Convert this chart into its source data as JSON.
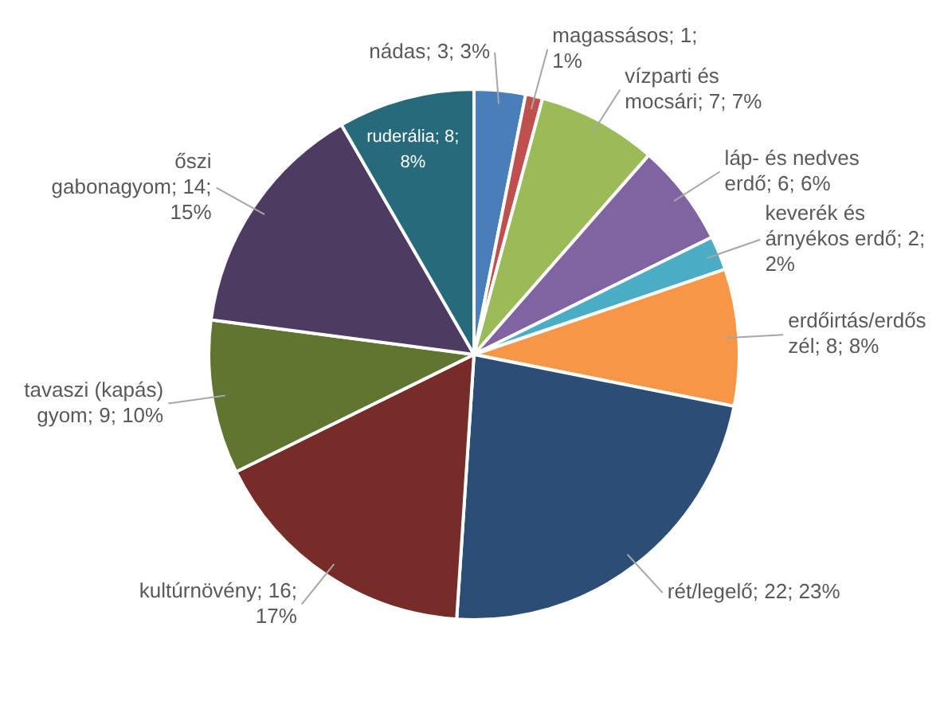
{
  "chart_data": {
    "type": "pie",
    "categories": [
      "nádas",
      "magassásos",
      "vízparti és mocsári",
      "láp- és nedves erdő",
      "keverék és árnyékos erdő",
      "erdőirtás/erdős zél",
      "rét/legelő",
      "kultúrnövény",
      "tavaszi (kapás) gyom",
      "őszi gabonagyom",
      "ruderália"
    ],
    "values": [
      3,
      1,
      7,
      6,
      2,
      8,
      22,
      16,
      9,
      14,
      8
    ],
    "value_labels": [
      "3; 3%",
      "1; 1%",
      "7; 7%",
      "6; 6%",
      "2; 2%",
      "8; 8%",
      "22; 23%",
      "16; 17%",
      "9; 10%",
      "14; 15%",
      "8; 8%"
    ],
    "colors": [
      "#4a7ebb",
      "#c0504d",
      "#9bbb59",
      "#8064a2",
      "#4bacc6",
      "#f79646",
      "#2c4d75",
      "#772c2a",
      "#5f7530",
      "#4d3b62",
      "#276a7c"
    ],
    "legend": false
  }
}
